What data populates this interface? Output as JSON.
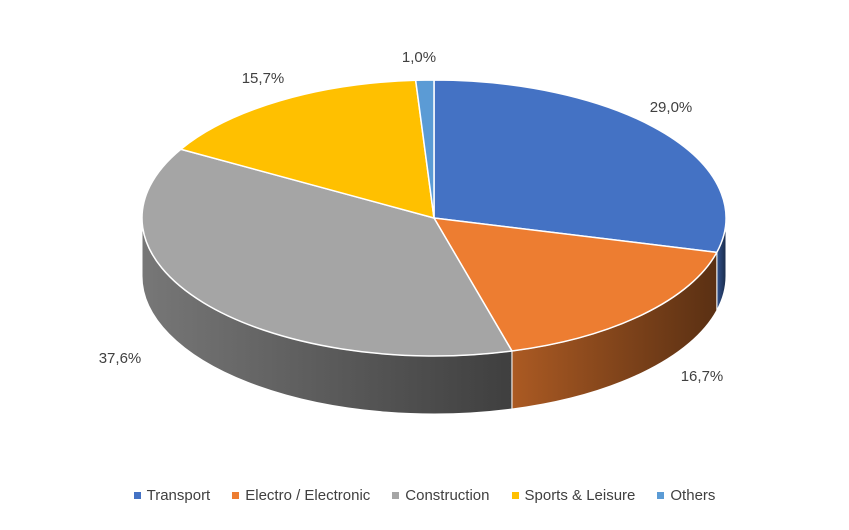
{
  "chart_data": {
    "type": "pie",
    "variant": "3d",
    "title": "",
    "legend_position": "bottom",
    "slices": [
      {
        "name": "Transport",
        "value": 29.0,
        "label": "29,0%",
        "color": "#4472C4"
      },
      {
        "name": "Electro / Electronic",
        "value": 16.7,
        "label": "16,7%",
        "color": "#ED7D31"
      },
      {
        "name": "Construction",
        "value": 37.6,
        "label": "37,6%",
        "color": "#A5A5A5"
      },
      {
        "name": "Sports & Leisure",
        "value": 15.7,
        "label": "15,7%",
        "color": "#FFC000"
      },
      {
        "name": "Others",
        "value": 1.0,
        "label": "1,0%",
        "color": "#5B9BD5"
      }
    ]
  }
}
